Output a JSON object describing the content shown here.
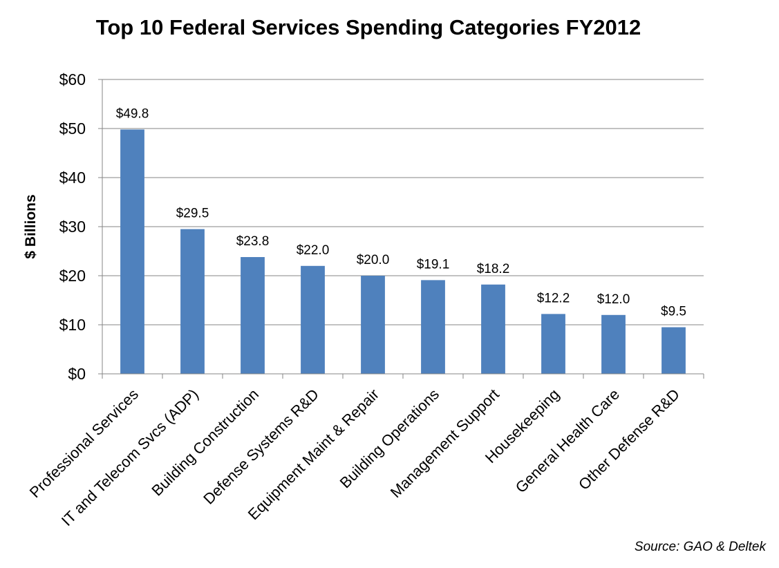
{
  "chart_data": {
    "type": "bar",
    "title": "Top 10 Federal Services Spending Categories FY2012",
    "ylabel": "$ Billions",
    "xlabel": "",
    "ylim": [
      0,
      60
    ],
    "yticks": [
      0,
      10,
      20,
      30,
      40,
      50,
      60
    ],
    "ytick_labels": [
      "$0",
      "$10",
      "$20",
      "$30",
      "$40",
      "$50",
      "$60"
    ],
    "grid": true,
    "bar_color": "#4f81bd",
    "categories": [
      "Professional Services",
      "IT and Telecom Svcs (ADP)",
      "Building Construction",
      "Defense Systems R&D",
      "Equipment Maint & Repair",
      "Building Operations",
      "Management Support",
      "Housekeeping",
      "General Health Care",
      "Other Defense R&D"
    ],
    "values": [
      49.8,
      29.5,
      23.8,
      22.0,
      20.0,
      19.1,
      18.2,
      12.2,
      12.0,
      9.5
    ],
    "data_labels": [
      "$49.8",
      "$29.5",
      "$23.8",
      "$22.0",
      "$20.0",
      "$19.1",
      "$18.2",
      "$12.2",
      "$12.0",
      "$9.5"
    ],
    "source": "Source:  GAO & Deltek"
  }
}
